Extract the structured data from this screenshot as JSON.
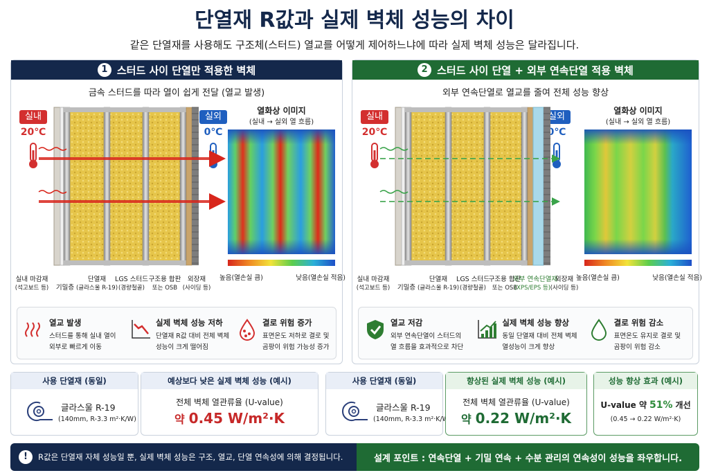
{
  "header": {
    "title": "단열재 R값과 실제 벽체 성능의 차이",
    "subtitle": "같은 단열재를 사용해도 구조체(스터드) 열교를 어떻게 제어하느냐에 따라 실제 벽체 성능은 달라집니다."
  },
  "panels": [
    {
      "number": "1",
      "title": "스터드 사이 단열만 적용한 벽체",
      "color": "#14284b",
      "caption": "금속 스터드를 따라 열이 쉽게 전달 (열교 발생)",
      "indoor": {
        "label": "실내",
        "temperature": "20℃"
      },
      "outdoor": {
        "label": "실외",
        "temperature": "0℃"
      },
      "thermal_image": {
        "title": "열화상 이미지",
        "subtitle": "(실내 → 실외 열 흐름)",
        "scale_high": "높음(열손실 큼)",
        "scale_low": "낮음(열손실 적음)"
      },
      "layers": [
        {
          "name": "실내 마감재",
          "detail": "(석고보드 등)"
        },
        {
          "name": "기밀층"
        },
        {
          "name": "단열재",
          "detail": "(글라스울 R-19)"
        },
        {
          "name": "LGS 스터드",
          "detail": "(경량철골)"
        },
        {
          "name": "구조용 합판",
          "detail": "또는 OSB"
        },
        {
          "name": "외장재",
          "detail": "(사이딩 등)"
        }
      ],
      "effects": [
        {
          "title": "열교 발생",
          "lines": [
            "스터드를 통해 실내 열이",
            "외부로 빠르게 이동"
          ]
        },
        {
          "title": "실제 벽체 성능 저하",
          "lines": [
            "단열재 R값 대비 전체 벽체",
            "성능이 크게 떨어짐"
          ]
        },
        {
          "title": "결로 위험 증가",
          "lines": [
            "표면온도 저하로 결로 및",
            "곰팡이 위험 가능성 증가"
          ]
        }
      ]
    },
    {
      "number": "2",
      "title": "스터드 사이 단열 + 외부 연속단열 적용 벽체",
      "color": "#1f6b34",
      "caption": "외부 연속단열로 열교를 줄여 전체 성능 향상",
      "indoor": {
        "label": "실내",
        "temperature": "20℃"
      },
      "outdoor": {
        "label": "실외",
        "temperature": "0℃"
      },
      "thermal_image": {
        "title": "열화상 이미지",
        "subtitle": "(실내 → 실외 열 흐름)",
        "scale_high": "높음(열손실 큼)",
        "scale_low": "낮음(열손실 적음)"
      },
      "layers": [
        {
          "name": "실내 마감재",
          "detail": "(석고보드 등)"
        },
        {
          "name": "기밀층"
        },
        {
          "name": "단열재",
          "detail": "(글라스울 R-19)"
        },
        {
          "name": "LGS 스터드",
          "detail": "(경량철골)"
        },
        {
          "name": "구조용 합판",
          "detail": "또는 OSB"
        },
        {
          "name": "외부 연속단열재",
          "detail": "(XPS/EPS 등)",
          "color": "#2e7d32"
        },
        {
          "name": "외장재",
          "detail": "(사이딩 등)"
        }
      ],
      "effects": [
        {
          "title": "열교 저감",
          "lines": [
            "외부 연속단열이 스터드의",
            "열 흐름을 효과적으로 차단"
          ]
        },
        {
          "title": "실제 벽체 성능 향상",
          "lines": [
            "동일 단열재 대비 전체 벽체",
            "열성능이 크게 향상"
          ]
        },
        {
          "title": "결로 위험 감소",
          "lines": [
            "표면온도 유지로 결로 및",
            "곰팡이 위험 감소"
          ]
        }
      ]
    }
  ],
  "summary": {
    "left": [
      {
        "header": "사용 단열재 (동일)",
        "material": "글라스울 R-19",
        "spec": "(140mm, R-3.3 m²·K/W)"
      },
      {
        "header": "예상보다 낮은 실제 벽체 성능 (예시)",
        "metric": "전체 벽체 열관류율 (U-value)",
        "prefix": "약",
        "value": "0.45 W/m²·K"
      }
    ],
    "right": [
      {
        "header": "사용 단열재 (동일)",
        "material": "글라스울 R-19",
        "spec": "(140mm, R-3.3 m²·K/W)"
      },
      {
        "header": "향상된 실제 벽체 성능 (예시)",
        "metric": "전체 벽체 열관류율 (U-value)",
        "prefix": "약",
        "value": "0.22 W/m²·K"
      },
      {
        "header": "성능 향상 효과 (예시)",
        "prefix": "U-value 약",
        "value": "51%",
        "suffix": "개선",
        "note": "(0.45 → 0.22 W/m²·K)"
      }
    ]
  },
  "footer": {
    "notice_icon": "!",
    "notice": "R값은 단열재 자체 성능일 뿐, 실제 벽체 성능은 구조, 열교, 단열 연속성에 의해 결정됩니다.",
    "design_point": "설계 포인트 : 연속단열 + 기밀 연속 + 수분 관리의 연속성이 성능을 좌우합니다."
  }
}
